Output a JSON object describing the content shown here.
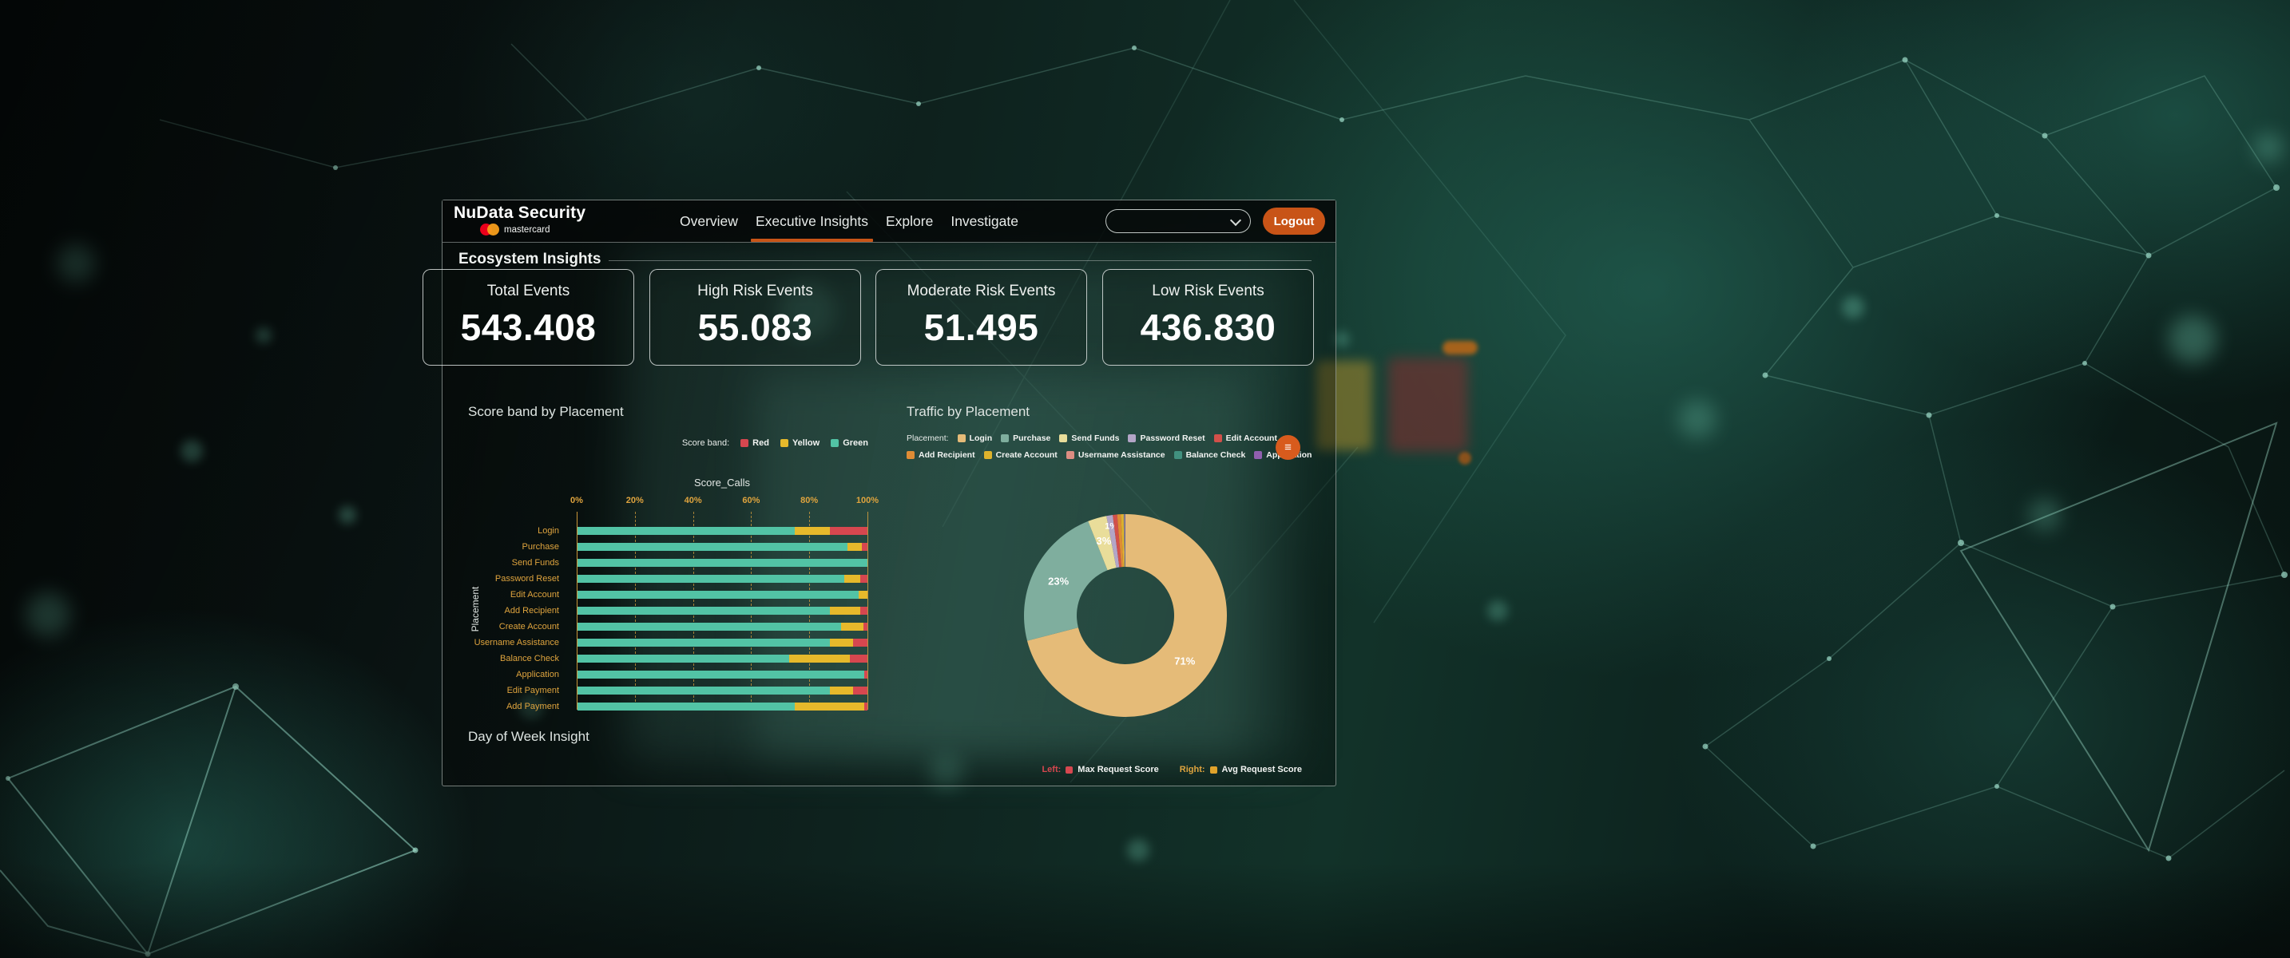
{
  "header": {
    "brand": {
      "name": "NuData Security",
      "sub_brand": "mastercard"
    },
    "nav_items": [
      {
        "label": "Overview",
        "active": false
      },
      {
        "label": "Executive Insights",
        "active": true
      },
      {
        "label": "Explore",
        "active": false
      },
      {
        "label": "Investigate",
        "active": false
      }
    ],
    "filter_dropdown": {
      "value": ""
    },
    "logout_label": "Logout"
  },
  "ecosystem": {
    "section_title": "Ecosystem Insights",
    "metric_cards": [
      {
        "label": "Total Events",
        "value": "543.408"
      },
      {
        "label": "High Risk Events",
        "value": "55.083"
      },
      {
        "label": "Moderate Risk Events",
        "value": "51.495"
      },
      {
        "label": "Low Risk Events",
        "value": "436.830"
      }
    ]
  },
  "colors": {
    "accent_orange": "#c85417",
    "badge_orange": "#d85b1d",
    "tick_orange": "#dfa43e",
    "mastercard_red": "#eb001b",
    "mastercard_orange": "#f79e1b"
  },
  "chart_data": [
    {
      "type": "bar",
      "variant": "horizontal-stacked-100-percent",
      "title": "Score band by Placement",
      "legend_title": "Score band:",
      "legend_position": "top-right",
      "legend": [
        {
          "label": "Red",
          "color": "#d6474f"
        },
        {
          "label": "Yellow",
          "color": "#e6b92b"
        },
        {
          "label": "Green",
          "color": "#52c3a5"
        }
      ],
      "xlabel": "Score_Calls",
      "ylabel": "Placement",
      "x_ticks": [
        "0%",
        "20%",
        "40%",
        "60%",
        "80%",
        "100%"
      ],
      "xlim": [
        0,
        100
      ],
      "grid": true,
      "categories": [
        "Login",
        "Purchase",
        "Send Funds",
        "Password Reset",
        "Edit Account",
        "Add Recipient",
        "Create Account",
        "Username Assistance",
        "Balance Check",
        "Application",
        "Edit Payment",
        "Add Payment"
      ],
      "series": [
        {
          "name": "Green",
          "color": "#52c3a5",
          "values": [
            75,
            93,
            100,
            92,
            97,
            87,
            91,
            87,
            73,
            99,
            87,
            75
          ]
        },
        {
          "name": "Yellow",
          "color": "#e6b92b",
          "values": [
            12,
            5,
            0,
            5.5,
            3,
            10.5,
            7.5,
            8,
            21,
            0,
            8,
            24
          ]
        },
        {
          "name": "Red",
          "color": "#d6474f",
          "values": [
            13,
            2,
            0,
            2.5,
            0,
            2.5,
            1.5,
            5,
            6,
            1,
            5,
            1
          ]
        }
      ]
    },
    {
      "type": "pie",
      "variant": "donut",
      "title": "Traffic by Placement",
      "legend_title": "Placement:",
      "legend_position": "top",
      "slices": [
        {
          "label": "Login",
          "value": 71,
          "color": "#e5bb78",
          "data_label": "71%"
        },
        {
          "label": "Purchase",
          "value": 23,
          "color": "#7fae9e",
          "data_label": "23%"
        },
        {
          "label": "Send Funds",
          "value": 3,
          "color": "#e9dd9a",
          "data_label": "3%"
        },
        {
          "label": "Password Reset",
          "value": 1,
          "color": "#b3a5c7",
          "data_label": "1%"
        },
        {
          "label": "Edit Account",
          "value": 0.7,
          "color": "#d2504a",
          "data_label": ""
        },
        {
          "label": "Add Recipient",
          "value": 0.6,
          "color": "#df8c35",
          "data_label": ""
        },
        {
          "label": "Create Account",
          "value": 0.4,
          "color": "#ddb32c",
          "data_label": ""
        },
        {
          "label": "Username Assistance",
          "value": 0.1,
          "color": "#dd8d82",
          "data_label": ""
        },
        {
          "label": "Balance Check",
          "value": 0.1,
          "color": "#41917f",
          "data_label": ""
        },
        {
          "label": "Application",
          "value": 0.1,
          "color": "#8f5fae",
          "data_label": ""
        }
      ],
      "legend_rows": [
        [
          0,
          1,
          2,
          3,
          4
        ],
        [
          5,
          6,
          7,
          8,
          9
        ]
      ]
    }
  ],
  "day_of_week": {
    "title": "Day of Week Insight",
    "legend": [
      {
        "prefix": "Left:",
        "prefix_color": "#d6474f",
        "swatch": "#d6474f",
        "label": "Max Request Score"
      },
      {
        "prefix": "Right:",
        "prefix_color": "#dfa43e",
        "swatch": "#e0a32b",
        "label": "Avg Request Score"
      }
    ]
  }
}
